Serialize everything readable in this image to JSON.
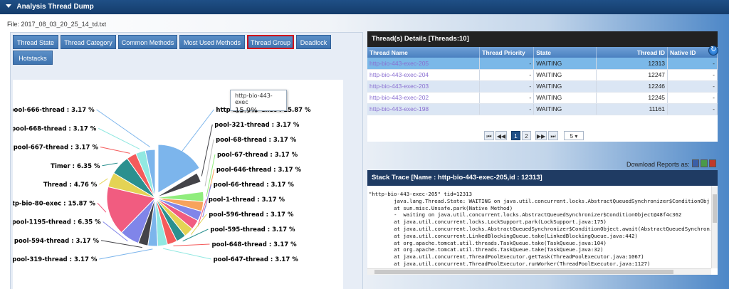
{
  "window": {
    "title": "Analysis Thread Dump"
  },
  "file": {
    "label": "File: 2017_08_03_20_25_14_td.txt"
  },
  "tabs": [
    {
      "label": "Thread State",
      "active": false
    },
    {
      "label": "Thread Category",
      "active": false
    },
    {
      "label": "Common Methods",
      "active": false
    },
    {
      "label": "Most Used Methods",
      "active": false
    },
    {
      "label": "Thread Group",
      "active": true
    },
    {
      "label": "Deadlock",
      "active": false
    },
    {
      "label": "Hotstacks",
      "active": false
    }
  ],
  "tooltip": {
    "name": "http-bio-443-exec",
    "value": "15.9%"
  },
  "chart_data": {
    "type": "pie",
    "title": "",
    "slices": [
      {
        "label": "http-bio-443-exec",
        "value": 15.87,
        "display": "http-bio-443-exec : 15.87 %",
        "color": "#7cb5ec"
      },
      {
        "label": "pool-321-thread",
        "value": 3.17,
        "display": "pool-321-thread : 3.17 %",
        "color": "#434348"
      },
      {
        "label": "pool-68-thread",
        "value": 3.17,
        "display": "pool-68-thread : 3.17 %",
        "color": "#ffffff"
      },
      {
        "label": "pool-67-thread",
        "value": 3.17,
        "display": "pool-67-thread : 3.17 %",
        "color": "#90ed7d"
      },
      {
        "label": "pool-646-thread",
        "value": 3.17,
        "display": "pool-646-thread : 3.17 %",
        "color": "#f7a35c"
      },
      {
        "label": "pool-66-thread",
        "value": 3.17,
        "display": "pool-66-thread : 3.17 %",
        "color": "#8085e9"
      },
      {
        "label": "pool-1-thread",
        "value": 3.17,
        "display": "pool-1-thread : 3.17 %",
        "color": "#f15c80"
      },
      {
        "label": "pool-596-thread",
        "value": 3.17,
        "display": "pool-596-thread : 3.17 %",
        "color": "#e4d354"
      },
      {
        "label": "pool-595-thread",
        "value": 3.17,
        "display": "pool-595-thread : 3.17 %",
        "color": "#2b908f"
      },
      {
        "label": "pool-648-thread",
        "value": 3.17,
        "display": "pool-648-thread : 3.17 %",
        "color": "#f45b5b"
      },
      {
        "label": "pool-647-thread",
        "value": 3.17,
        "display": "pool-647-thread : 3.17 %",
        "color": "#91e8e1"
      },
      {
        "label": "pool-319-thread",
        "value": 3.17,
        "display": "pool-319-thread : 3.17 %",
        "color": "#7cb5ec"
      },
      {
        "label": "pool-594-thread",
        "value": 3.17,
        "display": "pool-594-thread : 3.17 %",
        "color": "#434348"
      },
      {
        "label": "pool-1195-thread",
        "value": 6.35,
        "display": "pool-1195-thread : 6.35 %",
        "color": "#8085e9"
      },
      {
        "label": "http-bio-80-exec",
        "value": 15.87,
        "display": "http-bio-80-exec : 15.87 %",
        "color": "#f15c80"
      },
      {
        "label": "Thread",
        "value": 4.76,
        "display": "Thread : 4.76 %",
        "color": "#e4d354"
      },
      {
        "label": "Timer",
        "value": 6.35,
        "display": "Timer : 6.35 %",
        "color": "#2b908f"
      },
      {
        "label": "pool-667-thread",
        "value": 3.17,
        "display": "pool-667-thread : 3.17 %",
        "color": "#f45b5b"
      },
      {
        "label": "pool-668-thread",
        "value": 3.17,
        "display": "pool-668-thread : 3.17 %",
        "color": "#91e8e1"
      },
      {
        "label": "pool-666-thread",
        "value": 3.17,
        "display": "pool-666-thread : 3.17 %",
        "color": "#7cb5ec"
      }
    ]
  },
  "threads": {
    "title": "Thread(s) Details [Threads:10]",
    "columns": [
      "Thread Name",
      "Thread Priority",
      "State",
      "Thread ID",
      "Native ID"
    ],
    "rows": [
      {
        "name": "http-bio-443-exec-205",
        "priority": "-",
        "state": "WAITING",
        "id": "12313",
        "native": "-"
      },
      {
        "name": "http-bio-443-exec-204",
        "priority": "-",
        "state": "WAITING",
        "id": "12247",
        "native": "-"
      },
      {
        "name": "http-bio-443-exec-203",
        "priority": "-",
        "state": "WAITING",
        "id": "12246",
        "native": "-"
      },
      {
        "name": "http-bio-443-exec-202",
        "priority": "-",
        "state": "WAITING",
        "id": "12245",
        "native": "-"
      },
      {
        "name": "http-bio-443-exec-198",
        "priority": "-",
        "state": "WAITING",
        "id": "11161",
        "native": "-"
      }
    ]
  },
  "pager": {
    "first": "⏮",
    "prev": "◀◀",
    "page1": "1",
    "page2": "2",
    "next": "▶▶",
    "last": "⏭",
    "size": "5 ▾"
  },
  "download": {
    "label": "Download Reports as:"
  },
  "stack": {
    "title": "Stack Trace [Name : http-bio-443-exec-205,id : 12313]",
    "lines": [
      "\"http-bio-443-exec-205\" tid=12313",
      "        java.lang.Thread.State: WAITING on java.util.concurrent.locks.AbstractQueuedSynchronizer$ConditionObj",
      "        at sun.misc.Unsafe.park(Native Method)",
      "        -  waiting on java.util.concurrent.locks.AbstractQueuedSynchronizer$ConditionObject@48f4c362",
      "        at java.util.concurrent.locks.LockSupport.park(LockSupport.java:175)",
      "        at java.util.concurrent.locks.AbstractQueuedSynchronizer$ConditionObject.await(AbstractQueuedSynchroniz",
      "        at java.util.concurrent.LinkedBlockingQueue.take(LinkedBlockingQueue.java:442)",
      "        at org.apache.tomcat.util.threads.TaskQueue.take(TaskQueue.java:104)",
      "        at org.apache.tomcat.util.threads.TaskQueue.take(TaskQueue.java:32)",
      "        at java.util.concurrent.ThreadPoolExecutor.getTask(ThreadPoolExecutor.java:1067)",
      "        at java.util.concurrent.ThreadPoolExecutor.runWorker(ThreadPoolExecutor.java:1127)"
    ]
  }
}
